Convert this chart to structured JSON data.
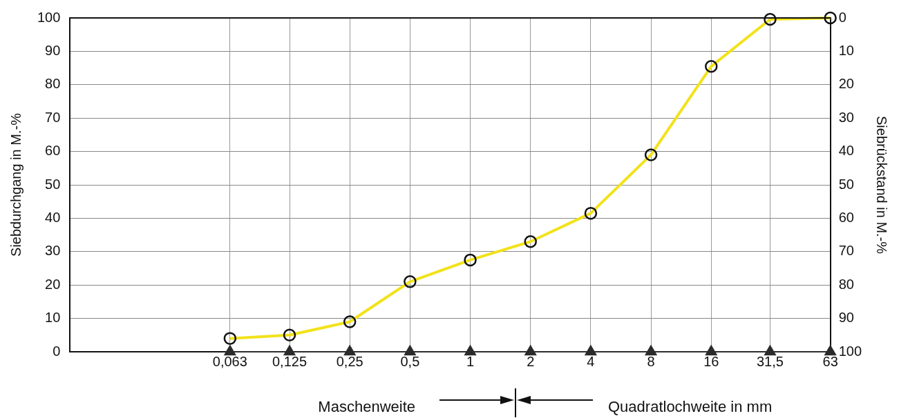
{
  "chart_data": {
    "type": "line",
    "ylabel": "Siebdurchgang in M.-%",
    "y2label": "Siebrückstand in M.-%",
    "x": [
      0.063,
      0.125,
      0.25,
      0.5,
      1,
      2,
      4,
      8,
      16,
      31.5,
      63
    ],
    "series": [
      {
        "name": null,
        "color": "#f2e21a",
        "values": [
          4,
          5,
          9,
          21,
          27.5,
          33,
          41.5,
          59,
          85.5,
          99.6,
          100
        ],
        "marker": "circle"
      },
      {
        "color": "#2b2b2b",
        "values": [
          0,
          0,
          0,
          0,
          0,
          0,
          0,
          0,
          0,
          0,
          0
        ],
        "marker": "triangle"
      }
    ],
    "log": "x",
    "xlim": [
      0.01,
      63
    ],
    "xticks": [
      {
        "value": 0.063,
        "label": "0,063"
      },
      {
        "value": 0.125,
        "label": "0,125"
      },
      {
        "value": 0.25,
        "label": "0,25"
      },
      {
        "value": 0.5,
        "label": "0,5"
      },
      1,
      2,
      4,
      8,
      16,
      {
        "value": 31.5,
        "label": "31,5"
      },
      63
    ],
    "ylim": [
      0,
      100
    ],
    "yticks": [
      0,
      10,
      20,
      30,
      40,
      50,
      60,
      70,
      80,
      90,
      100
    ],
    "y2lim": [
      100,
      0
    ],
    "y2ticks": [
      0,
      10,
      20,
      30,
      40,
      50,
      60,
      70,
      80,
      90,
      100
    ],
    "grid": true,
    "legend": false,
    "annotations": [
      "Maschenweite",
      "Quadratlochweite in mm"
    ]
  }
}
